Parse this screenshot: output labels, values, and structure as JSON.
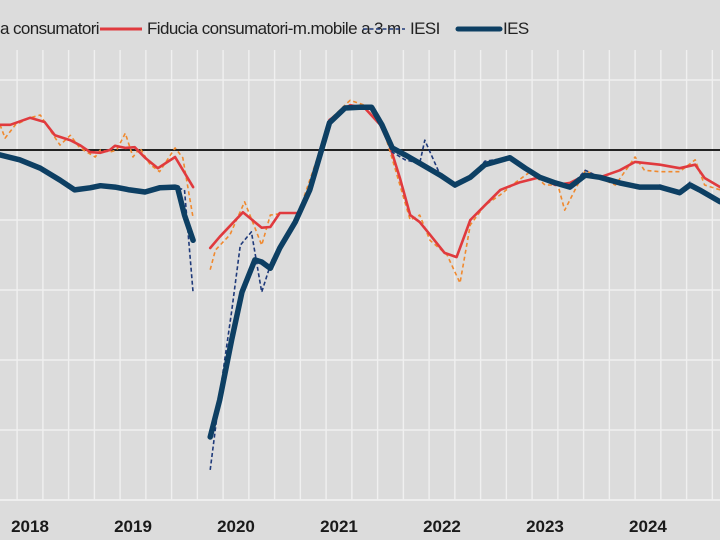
{
  "chart_data": {
    "type": "line",
    "title": "",
    "xlabel": "",
    "ylabel": "",
    "x_unit": "months since Jan 2018",
    "xlim": [
      -2.5,
      86.4
    ],
    "ylim": [
      -50,
      21.4
    ],
    "grid": true,
    "zero_line": 0,
    "legend_position": "top",
    "x_tick_labels": [
      {
        "label": "2018",
        "month": 6
      },
      {
        "label": "2019",
        "month": 18
      },
      {
        "label": "2020",
        "month": 30
      },
      {
        "label": "2021",
        "month": 42
      },
      {
        "label": "2022",
        "month": 54
      },
      {
        "label": "2023",
        "month": 66
      },
      {
        "label": "2024",
        "month": 78
      }
    ],
    "series": [
      {
        "name": "a consumatori",
        "color": "#f0892e",
        "style": "dashed-thin",
        "segments": [
          {
            "x": [
              2.5,
              3.1,
              4.3,
              6,
              7.2,
              8.3,
              9.5,
              10.7,
              11.8,
              13.6,
              14.2,
              15.3,
              16.1,
              17.1,
              18,
              18.8,
              20,
              21.1,
              22.9,
              23.8,
              25
            ],
            "y": [
              3.6,
              1.7,
              3.6,
              4.6,
              5,
              2.9,
              0.7,
              2.1,
              0.3,
              -1,
              0,
              -0.3,
              0,
              2.4,
              -1,
              0.3,
              -2.1,
              -3.1,
              0.3,
              -1.1,
              -9.7
            ]
          },
          {
            "x": [
              27,
              27.6,
              29.3,
              31,
              32.2,
              33,
              34,
              35.7,
              37.5,
              38,
              39.8,
              40.9,
              43.3,
              45,
              46.8,
              47.9,
              49.1,
              50.3,
              51.4,
              52.6,
              54.6,
              56.1,
              57.3,
              59,
              60.8,
              62.5,
              64.3,
              66,
              67.5,
              68.3,
              69.5,
              70.7,
              72.4,
              74.2,
              76.5,
              77.6,
              79.4,
              81.7,
              83.5,
              84.6,
              86.4
            ],
            "y": [
              -17.1,
              -14.3,
              -12.1,
              -7.4,
              -11.1,
              -13.6,
              -9.3,
              -9,
              -9,
              -6.4,
              0,
              4.3,
              7.1,
              6.4,
              4.3,
              0,
              -5,
              -10,
              -9.3,
              -12.9,
              -15,
              -19,
              -10.7,
              -7.9,
              -6.4,
              -4.7,
              -3.1,
              -5,
              -5,
              -8.6,
              -5.7,
              -2.9,
              -4,
              -5,
              -1,
              -2.9,
              -3.1,
              -3.1,
              -1.4,
              -5,
              -5.7
            ]
          }
        ]
      },
      {
        "name": "Fiducia consumatori-m.mobile a 3 m",
        "color": "#e03a3e",
        "style": "solid",
        "segments": [
          {
            "x": [
              2.5,
              3.7,
              6,
              7.7,
              8.9,
              10.7,
              11.8,
              13,
              14.2,
              15.3,
              15.9,
              17.1,
              18.2,
              19.4,
              20.9,
              22.9,
              25
            ],
            "y": [
              3.6,
              3.6,
              4.6,
              4,
              2.1,
              1.4,
              0.7,
              -0.3,
              -0.4,
              0,
              0.6,
              0.3,
              0.4,
              -1.1,
              -2.6,
              -1,
              -5.3
            ]
          },
          {
            "x": [
              27,
              28.1,
              30.8,
              33,
              34,
              35.1,
              37.5,
              38.6,
              39.8,
              40.9,
              43.3,
              45,
              46.8,
              47.9,
              49.1,
              50.3,
              51.4,
              52.6,
              54.3,
              55.7,
              57.3,
              59,
              60.8,
              63.1,
              65.4,
              67.2,
              68.9,
              70.7,
              72.4,
              74.7,
              76.5,
              79.4,
              81.7,
              83.5,
              84.6,
              86.4
            ],
            "y": [
              -14,
              -12.4,
              -8.9,
              -11.1,
              -11,
              -9,
              -9,
              -5.7,
              0,
              4.3,
              6.4,
              6,
              3.6,
              0.7,
              -4,
              -9.3,
              -10.3,
              -12.1,
              -14.7,
              -15.3,
              -10,
              -7.9,
              -5.7,
              -4.6,
              -3.9,
              -5,
              -4.7,
              -3.6,
              -3.9,
              -2.9,
              -1.7,
              -2.1,
              -2.6,
              -2.1,
              -4,
              -5.3
            ]
          }
        ]
      },
      {
        "name": "IESI",
        "color": "#1f3a7a",
        "style": "dashed",
        "segments": [
          {
            "x": [
              2.5,
              4.8,
              7.2,
              9.5,
              11.2,
              13,
              14.2,
              15.9,
              17.6,
              19.4,
              21.1,
              22.9,
              23.2,
              24,
              25
            ],
            "y": [
              -0.7,
              -1.4,
              -2.6,
              -4.3,
              -5.7,
              -5.4,
              -5.1,
              -5.3,
              -5.7,
              -6,
              -5.4,
              -5.3,
              -5.4,
              -5.7,
              -20.4
            ]
          },
          {
            "x": [
              27,
              28.1,
              29.5,
              30.5,
              31.8,
              33,
              34.2,
              35.1,
              36.9,
              38.6,
              39.8,
              40.9,
              42.7,
              44.4,
              45.8,
              47,
              48.2,
              49.7,
              51.4,
              52,
              53.8,
              55.5,
              57.3,
              59,
              61.9,
              63.7,
              65.4,
              67.2,
              68.9,
              70.7,
              72.4,
              74.7,
              77,
              79.4,
              81.7,
              82.9,
              84,
              86.4
            ],
            "y": [
              -45.7,
              -35,
              -23,
              -13.6,
              -11.7,
              -20.3,
              -15.7,
              -14,
              -10.3,
              -5.7,
              -0.7,
              3.9,
              6,
              6.1,
              6.1,
              3.6,
              -0.3,
              -1.4,
              -1.9,
              1.4,
              -3.6,
              -5.3,
              -3.9,
              -1.6,
              -1.1,
              -2.6,
              -3.9,
              -4.7,
              -5.3,
              -2.9,
              -3.9,
              -4.7,
              -5.3,
              -5,
              -6.1,
              -4.6,
              -5.7,
              -7.6
            ]
          }
        ]
      },
      {
        "name": "IES",
        "color": "#0d3f63",
        "style": "thick",
        "segments": [
          {
            "x": [
              2.5,
              4.8,
              7.2,
              9.5,
              11.2,
              13,
              14.2,
              15.9,
              17.6,
              19.4,
              21.1,
              22.9,
              23.2,
              24,
              25
            ],
            "y": [
              -0.7,
              -1.4,
              -2.6,
              -4.3,
              -5.7,
              -5.4,
              -5.1,
              -5.3,
              -5.7,
              -6,
              -5.4,
              -5.3,
              -5.4,
              -9.3,
              -12.9
            ]
          },
          {
            "x": [
              27,
              28.1,
              29.5,
              30.7,
              32.2,
              33,
              34,
              35.1,
              36.9,
              38.6,
              39.8,
              40.9,
              42.7,
              44.4,
              45.8,
              47,
              48.2,
              49.7,
              51.4,
              53.8,
              55.5,
              57.3,
              59,
              61.9,
              63.7,
              65.4,
              67.2,
              68.9,
              70.7,
              72.4,
              74.7,
              77,
              79.4,
              81.7,
              82.9,
              84,
              86.4
            ],
            "y": [
              -41,
              -35.7,
              -27.1,
              -20.3,
              -15.7,
              -16,
              -16.9,
              -14,
              -10.3,
              -5.7,
              -0.7,
              3.9,
              6,
              6.1,
              6.1,
              3.6,
              0.3,
              -0.7,
              -1.9,
              -3.6,
              -5,
              -3.9,
              -2.1,
              -1.1,
              -2.6,
              -3.9,
              -4.7,
              -5.3,
              -3.6,
              -3.9,
              -4.7,
              -5.3,
              -5.3,
              -6.1,
              -5,
              -5.7,
              -7.4
            ]
          }
        ]
      }
    ]
  }
}
